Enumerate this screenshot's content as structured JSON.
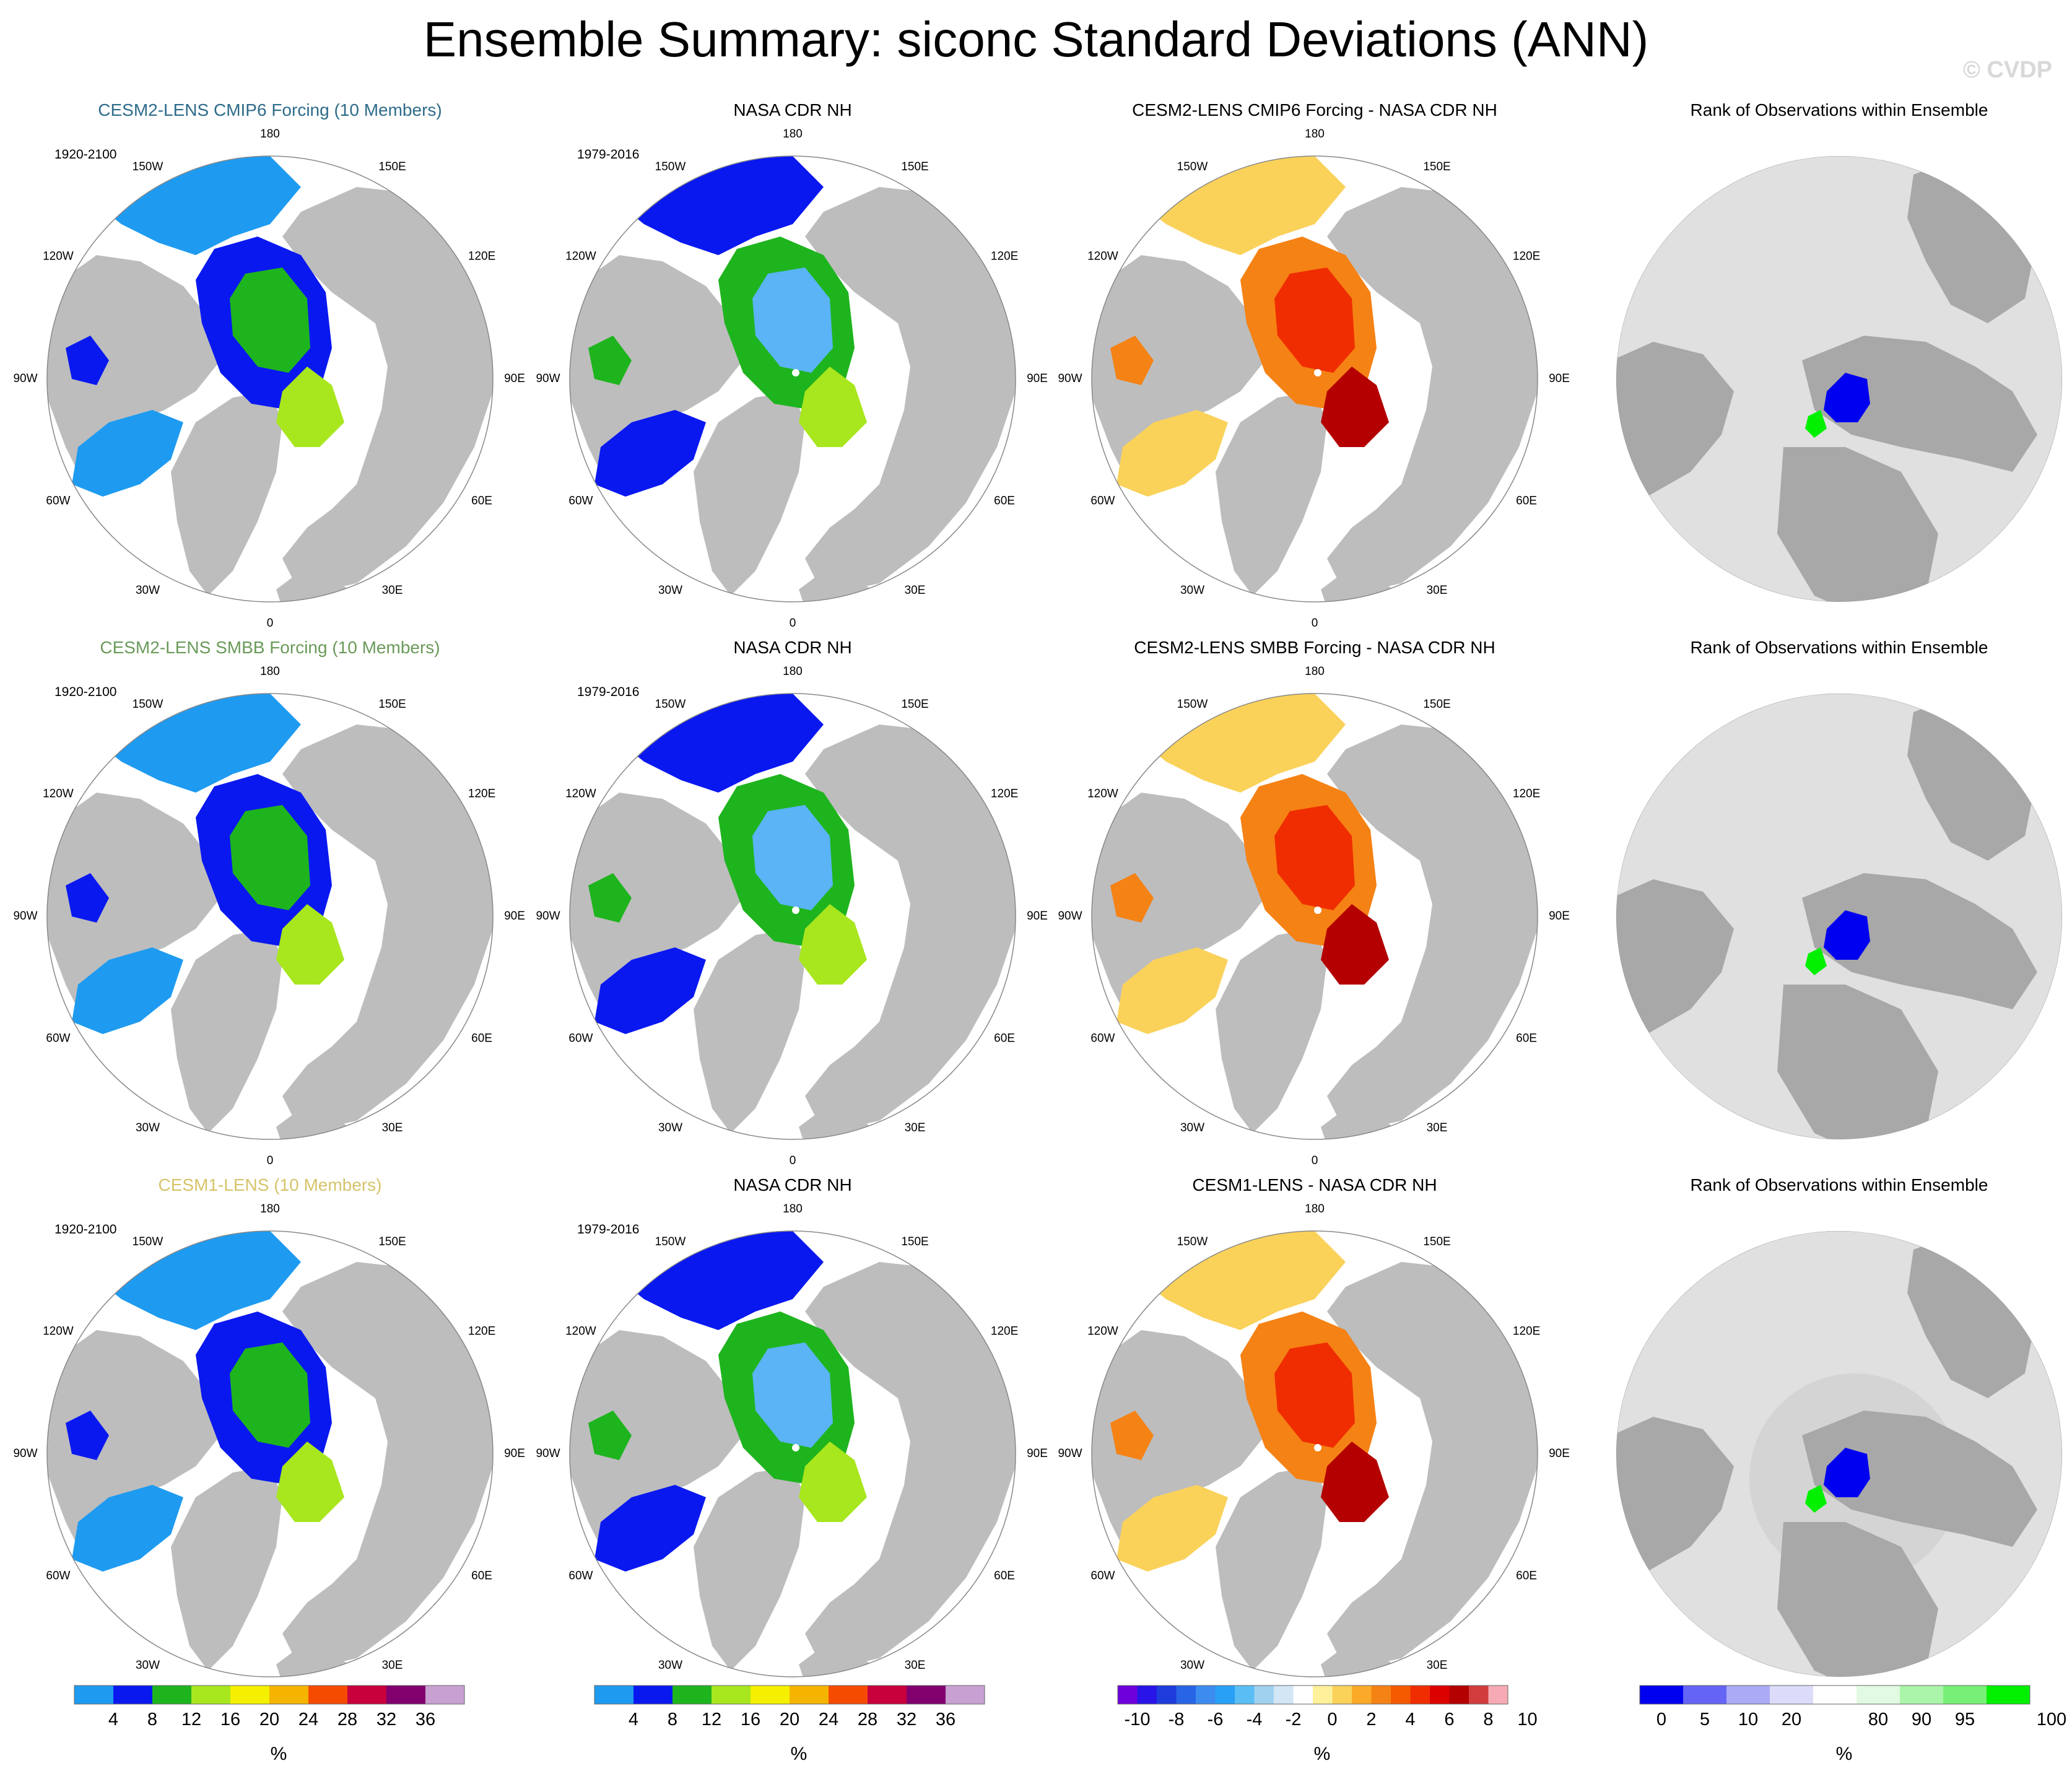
{
  "figure": {
    "title": "Ensemble Summary: siconc Standard Deviations (ANN)",
    "credit": "© CVDP"
  },
  "chart_data": [
    {
      "type": "heatmap",
      "panel": "r1c1",
      "title": "CESM2-LENS CMIP6 Forcing (10 Members)",
      "title_color": "#2e6b8a",
      "period": "1920-2100",
      "variant": "std",
      "colorbar": "std"
    },
    {
      "type": "heatmap",
      "panel": "r1c2",
      "title": "NASA CDR NH",
      "title_color": "#000000",
      "period": "1979-2016",
      "variant": "obs",
      "colorbar": "std"
    },
    {
      "type": "heatmap",
      "panel": "r1c3",
      "title": "CESM2-LENS CMIP6 Forcing - NASA CDR NH",
      "title_color": "#000000",
      "period": "",
      "variant": "diff",
      "colorbar": "diff"
    },
    {
      "type": "heatmap",
      "panel": "r1c4",
      "title": "Rank of Observations within Ensemble",
      "title_color": "#000000",
      "period": "",
      "variant": "rank",
      "colorbar": "rank"
    },
    {
      "type": "heatmap",
      "panel": "r2c1",
      "title": "CESM2-LENS SMBB Forcing (10 Members)",
      "title_color": "#6a9a5a",
      "period": "1920-2100",
      "variant": "std",
      "colorbar": "std"
    },
    {
      "type": "heatmap",
      "panel": "r2c2",
      "title": "NASA CDR NH",
      "title_color": "#000000",
      "period": "1979-2016",
      "variant": "obs",
      "colorbar": "std"
    },
    {
      "type": "heatmap",
      "panel": "r2c3",
      "title": "CESM2-LENS SMBB Forcing - NASA CDR NH",
      "title_color": "#000000",
      "period": "",
      "variant": "diff",
      "colorbar": "diff"
    },
    {
      "type": "heatmap",
      "panel": "r2c4",
      "title": "Rank of Observations within Ensemble",
      "title_color": "#000000",
      "period": "",
      "variant": "rank",
      "colorbar": "rank"
    },
    {
      "type": "heatmap",
      "panel": "r3c1",
      "title": "CESM1-LENS (10 Members)",
      "title_color": "#d6c46a",
      "period": "1920-2100",
      "variant": "std",
      "colorbar": "std"
    },
    {
      "type": "heatmap",
      "panel": "r3c2",
      "title": "NASA CDR NH",
      "title_color": "#000000",
      "period": "1979-2016",
      "variant": "obs",
      "colorbar": "std"
    },
    {
      "type": "heatmap",
      "panel": "r3c3",
      "title": "CESM1-LENS - NASA CDR NH",
      "title_color": "#000000",
      "period": "",
      "variant": "diff",
      "colorbar": "diff"
    },
    {
      "type": "heatmap",
      "panel": "r3c4",
      "title": "Rank of Observations within Ensemble",
      "title_color": "#000000",
      "period": "",
      "variant": "rank",
      "colorbar": "rank"
    }
  ],
  "longitude_labels": [
    "180",
    "150E",
    "120E",
    "90E",
    "60E",
    "30E",
    "0",
    "30W",
    "60W",
    "90W",
    "120W",
    "150W"
  ],
  "colorbars": {
    "std": {
      "unit": "%",
      "colors": [
        "#1e9bf0",
        "#0a18f0",
        "#1eb41e",
        "#a8e61e",
        "#f5f000",
        "#f5b400",
        "#f54b00",
        "#c8003c",
        "#82006e",
        "#c8a0d2"
      ],
      "labels": [
        "4",
        "8",
        "12",
        "16",
        "20",
        "24",
        "28",
        "32",
        "36"
      ]
    },
    "diff": {
      "unit": "%",
      "colors": [
        "#6e00dc",
        "#2814e6",
        "#1e3cdc",
        "#2864e6",
        "#3c8cf0",
        "#28a0f5",
        "#5abef5",
        "#a0d2f0",
        "#d2e6f5",
        "#ffffff",
        "#fff09b",
        "#fad25a",
        "#faaa28",
        "#f58214",
        "#f55a00",
        "#f02d00",
        "#dc0000",
        "#b40000",
        "#d23c3c",
        "#f5aab4"
      ],
      "labels": [
        "-10",
        "-8",
        "-6",
        "-4",
        "-2",
        "0",
        "2",
        "4",
        "6",
        "8",
        "10"
      ]
    },
    "rank": {
      "unit": "%",
      "colors": [
        "#0000f0",
        "#6464f5",
        "#aaaaf5",
        "#dcdcfa",
        "#ffffff",
        "#e1fae1",
        "#aaf5aa",
        "#78f078",
        "#00f000"
      ],
      "labels": [
        "0",
        "5",
        "10",
        "20",
        "80",
        "90",
        "95",
        "100"
      ],
      "label_boundaries": [
        0,
        1,
        2,
        3,
        5,
        6,
        7,
        9
      ]
    }
  }
}
